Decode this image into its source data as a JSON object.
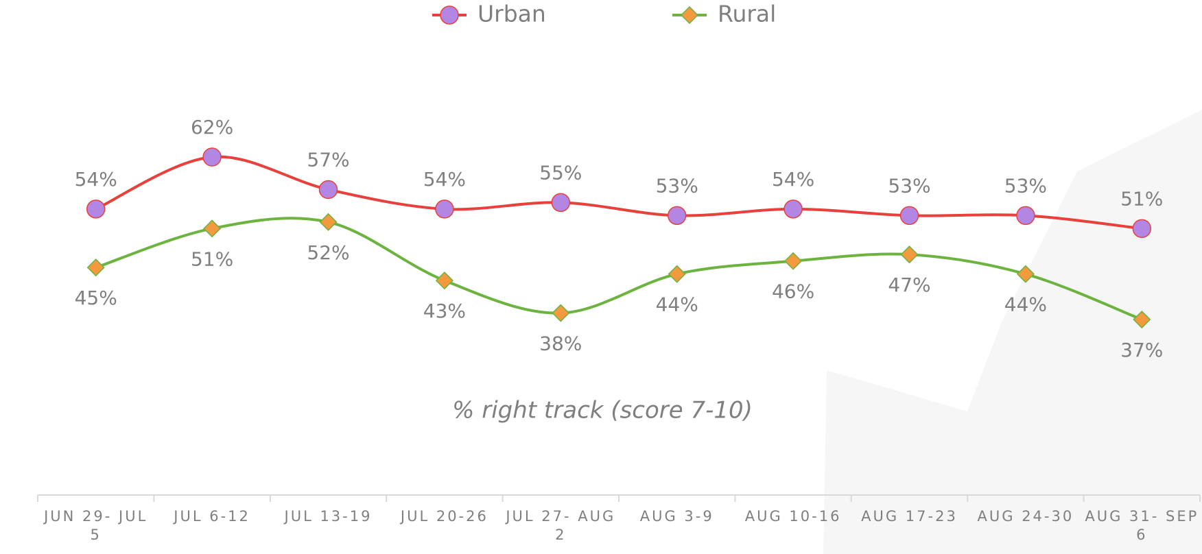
{
  "chart_data": {
    "type": "line",
    "annotation": "% right track (score 7-10)",
    "categories": [
      "JUN 29- JUL 5",
      "JUL 6-12",
      "JUL 13-19",
      "JUL 20-26",
      "JUL 27- AUG 2",
      "AUG 3-9",
      "AUG 10-16",
      "AUG 17-23",
      "AUG 24-30",
      "AUG 31- SEP 6"
    ],
    "series": [
      {
        "name": "Urban",
        "color": "#e8413c",
        "marker": "circle",
        "marker_color": "#b386e3",
        "values": [
          54,
          62,
          57,
          54,
          55,
          53,
          54,
          53,
          53,
          51
        ],
        "value_labels": [
          "54%",
          "62%",
          "57%",
          "54%",
          "55%",
          "53%",
          "54%",
          "53%",
          "53%",
          "51%"
        ]
      },
      {
        "name": "Rural",
        "color": "#6cb33f",
        "marker": "diamond",
        "marker_color": "#f39a3e",
        "values": [
          45,
          51,
          52,
          43,
          38,
          44,
          46,
          47,
          44,
          37
        ],
        "value_labels": [
          "45%",
          "51%",
          "52%",
          "43%",
          "38%",
          "44%",
          "46%",
          "47%",
          "44%",
          "37%"
        ]
      }
    ],
    "ylim": [
      10,
      85
    ],
    "smooth": true,
    "legend": "top"
  }
}
